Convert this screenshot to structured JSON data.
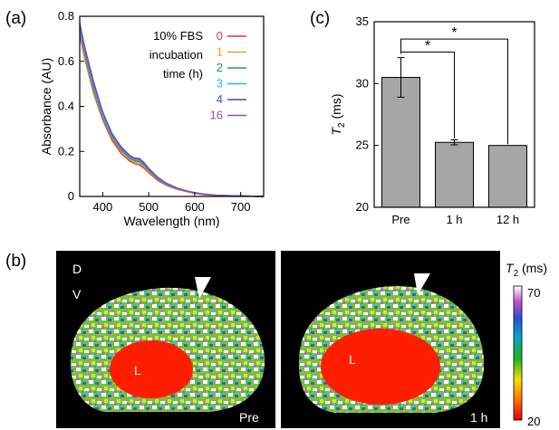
{
  "panel_labels": {
    "a": "(a)",
    "b": "(b)",
    "c": "(c)"
  },
  "colors": {
    "bar_fill": "#a6a6a6",
    "series_0": "#e8323c",
    "series_1": "#f0a020",
    "series_2": "#1a9e5a",
    "series_3": "#22b8e6",
    "series_4": "#3a4fb8",
    "series_16": "#8c4fb8",
    "liver_red": "#ff1e00"
  },
  "chart_data": [
    {
      "type": "line",
      "xlabel": "Wavelength (nm)",
      "ylabel": "Absorbance (AU)",
      "xlim": [
        350,
        750
      ],
      "ylim": [
        0,
        0.8
      ],
      "xticks": [
        400,
        500,
        600,
        700
      ],
      "yticks": [
        0,
        0.2,
        0.4,
        0.6,
        0.8
      ],
      "ytick_labels": [
        "0",
        "0.2",
        "0.4",
        "0.6",
        "0.8"
      ],
      "legend": {
        "title_lines": [
          "10% FBS",
          "incubation",
          "time (h)"
        ],
        "placement": "top-right"
      },
      "x": [
        350,
        360,
        380,
        400,
        420,
        440,
        460,
        470,
        480,
        490,
        500,
        520,
        540,
        560,
        580,
        600,
        620,
        650,
        700,
        750
      ],
      "series": [
        {
          "name": "0",
          "values": [
            0.72,
            0.62,
            0.46,
            0.34,
            0.25,
            0.19,
            0.155,
            0.145,
            0.14,
            0.125,
            0.105,
            0.07,
            0.048,
            0.033,
            0.022,
            0.014,
            0.008,
            0.004,
            0.002,
            0.0
          ]
        },
        {
          "name": "1",
          "values": [
            0.73,
            0.63,
            0.47,
            0.35,
            0.26,
            0.2,
            0.162,
            0.152,
            0.148,
            0.132,
            0.11,
            0.074,
            0.05,
            0.035,
            0.023,
            0.015,
            0.009,
            0.004,
            0.002,
            0.0
          ]
        },
        {
          "name": "2",
          "values": [
            0.74,
            0.64,
            0.48,
            0.355,
            0.265,
            0.205,
            0.168,
            0.158,
            0.155,
            0.138,
            0.115,
            0.077,
            0.052,
            0.036,
            0.024,
            0.016,
            0.009,
            0.005,
            0.002,
            0.0
          ]
        },
        {
          "name": "3",
          "values": [
            0.75,
            0.65,
            0.49,
            0.36,
            0.27,
            0.21,
            0.172,
            0.163,
            0.16,
            0.142,
            0.118,
            0.079,
            0.054,
            0.037,
            0.025,
            0.016,
            0.01,
            0.005,
            0.002,
            0.0
          ]
        },
        {
          "name": "4",
          "values": [
            0.77,
            0.67,
            0.51,
            0.375,
            0.28,
            0.22,
            0.18,
            0.17,
            0.168,
            0.15,
            0.125,
            0.084,
            0.057,
            0.039,
            0.026,
            0.017,
            0.01,
            0.005,
            0.002,
            0.0
          ]
        },
        {
          "name": "16",
          "values": [
            0.76,
            0.66,
            0.5,
            0.37,
            0.275,
            0.215,
            0.176,
            0.167,
            0.164,
            0.146,
            0.121,
            0.081,
            0.055,
            0.038,
            0.025,
            0.016,
            0.01,
            0.005,
            0.002,
            0.0
          ]
        }
      ]
    },
    {
      "type": "bar",
      "ylabel_main": "T",
      "ylabel_sub": "2",
      "ylabel_unit": " (ms)",
      "categories": [
        "Pre",
        "1 h",
        "12 h"
      ],
      "values": [
        30.5,
        25.25,
        25.0
      ],
      "errors": [
        1.6,
        0.2,
        0.0
      ],
      "ylim": [
        20,
        35
      ],
      "yticks": [
        20,
        25,
        30,
        35
      ],
      "significance": [
        {
          "from": "Pre",
          "to": "1 h",
          "label": "*"
        },
        {
          "from": "Pre",
          "to": "12 h",
          "label": "*"
        }
      ]
    }
  ],
  "mri": {
    "orientation": {
      "dorsal": "D",
      "ventral": "V"
    },
    "images": [
      {
        "caption": "Pre",
        "organ_label": "L"
      },
      {
        "caption": "1 h",
        "organ_label": "L"
      }
    ],
    "colorbar": {
      "title_main": "T",
      "title_sub": "2",
      "title_unit": " (ms)",
      "max_label": "70",
      "min_label": "20"
    }
  }
}
